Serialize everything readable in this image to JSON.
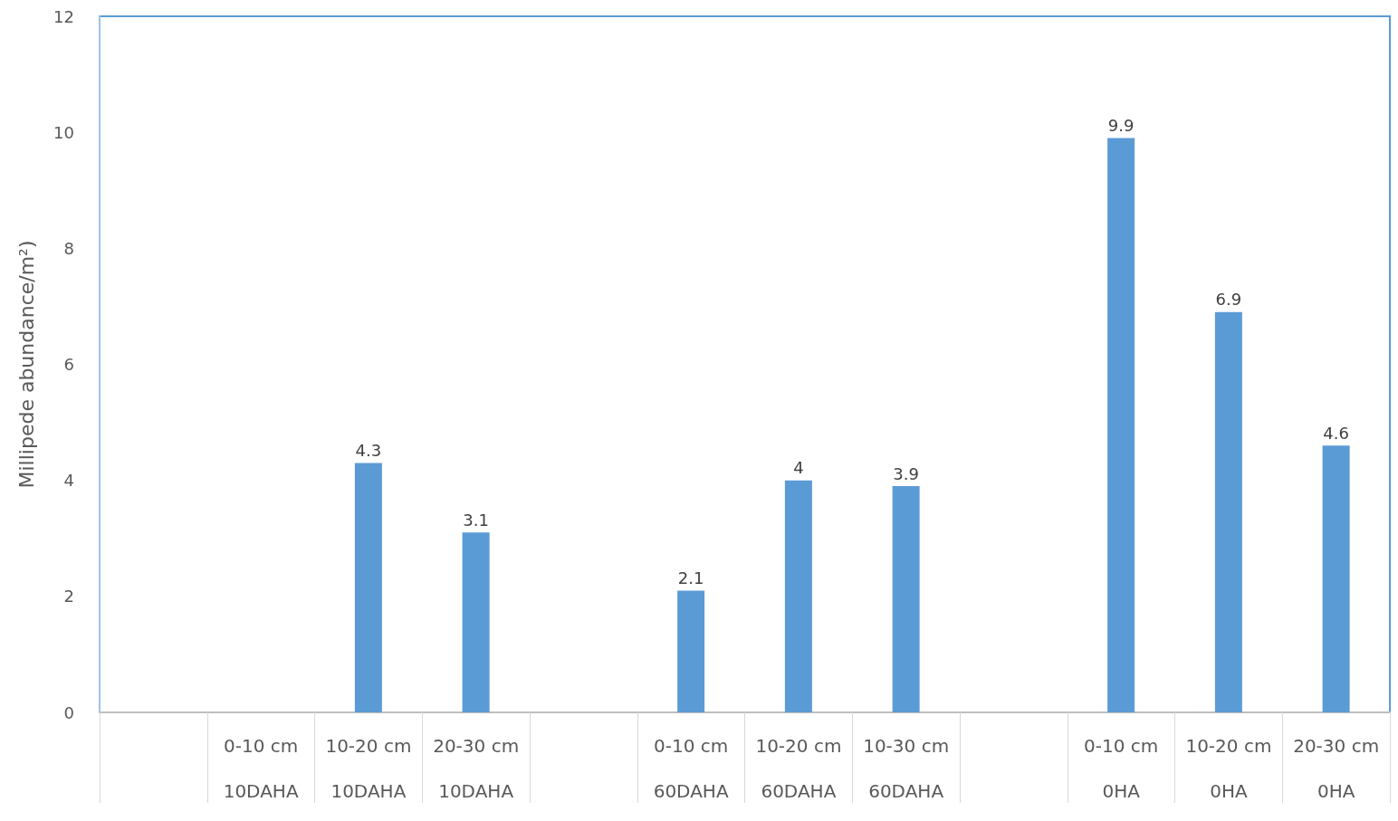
{
  "chart_data": {
    "type": "bar",
    "ylabel": "Millipede abundance/m²)",
    "categories": [
      null,
      "0-10 cm\n10DAHA",
      "10-20 cm\n10DAHA",
      "20-30 cm\n10DAHA",
      null,
      "0-10 cm\n60DAHA",
      "10-20 cm\n60DAHA",
      "10-30 cm\n60DAHA",
      null,
      "0-10 cm\n0HA",
      "10-20 cm\n0HA",
      "20-30 cm\n0HA"
    ],
    "values": [
      null,
      null,
      4.3,
      3.1,
      null,
      2.1,
      4,
      3.9,
      null,
      9.9,
      6.9,
      4.6
    ],
    "color": "#5b9bd5",
    "ylim": [
      0,
      12
    ],
    "yticks": [
      0,
      2,
      4,
      6,
      8,
      10,
      12
    ],
    "grid": false,
    "data_labels": true
  }
}
